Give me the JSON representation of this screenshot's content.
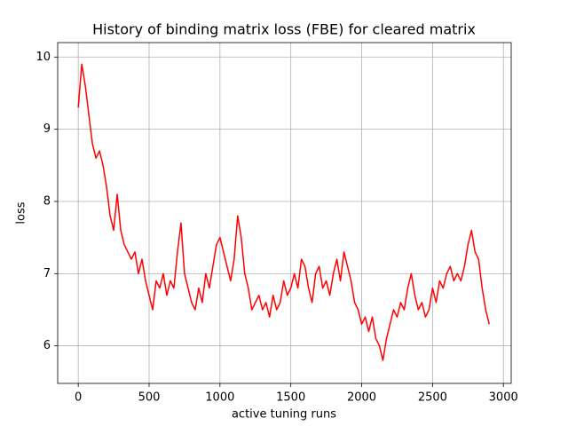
{
  "chart_data": {
    "type": "line",
    "title": "History of binding matrix loss (FBE) for cleared matrix",
    "xlabel": "active tuning runs",
    "ylabel": "loss",
    "x": [
      0,
      25,
      50,
      75,
      100,
      125,
      150,
      175,
      200,
      225,
      250,
      275,
      300,
      325,
      350,
      375,
      400,
      425,
      450,
      475,
      500,
      525,
      550,
      575,
      600,
      625,
      650,
      675,
      700,
      725,
      750,
      775,
      800,
      825,
      850,
      875,
      900,
      925,
      950,
      975,
      1000,
      1025,
      1050,
      1075,
      1100,
      1125,
      1150,
      1175,
      1200,
      1225,
      1250,
      1275,
      1300,
      1325,
      1350,
      1375,
      1400,
      1425,
      1450,
      1475,
      1500,
      1525,
      1550,
      1575,
      1600,
      1625,
      1650,
      1675,
      1700,
      1725,
      1750,
      1775,
      1800,
      1825,
      1850,
      1875,
      1900,
      1925,
      1950,
      1975,
      2000,
      2025,
      2050,
      2075,
      2100,
      2125,
      2150,
      2175,
      2200,
      2225,
      2250,
      2275,
      2300,
      2325,
      2350,
      2375,
      2400,
      2425,
      2450,
      2475,
      2500,
      2525,
      2550,
      2575,
      2600,
      2625,
      2650,
      2675,
      2700,
      2725,
      2750,
      2775,
      2800,
      2825,
      2850,
      2875,
      2900
    ],
    "series": [
      {
        "color": "#ff0000",
        "values": [
          9.3,
          9.9,
          9.6,
          9.2,
          8.8,
          8.6,
          8.7,
          8.5,
          8.2,
          7.8,
          7.6,
          8.1,
          7.6,
          7.4,
          7.3,
          7.2,
          7.3,
          7.0,
          7.2,
          6.9,
          6.7,
          6.5,
          6.9,
          6.8,
          7.0,
          6.7,
          6.9,
          6.8,
          7.3,
          7.7,
          7.0,
          6.8,
          6.6,
          6.5,
          6.8,
          6.6,
          7.0,
          6.8,
          7.1,
          7.4,
          7.5,
          7.3,
          7.1,
          6.9,
          7.2,
          7.8,
          7.5,
          7.0,
          6.8,
          6.5,
          6.6,
          6.7,
          6.5,
          6.6,
          6.4,
          6.7,
          6.5,
          6.6,
          6.9,
          6.7,
          6.8,
          7.0,
          6.8,
          7.2,
          7.1,
          6.8,
          6.6,
          7.0,
          7.1,
          6.8,
          6.9,
          6.7,
          7.0,
          7.2,
          6.9,
          7.3,
          7.1,
          6.9,
          6.6,
          6.5,
          6.3,
          6.4,
          6.2,
          6.4,
          6.1,
          6.0,
          5.8,
          6.1,
          6.3,
          6.5,
          6.4,
          6.6,
          6.5,
          6.8,
          7.0,
          6.7,
          6.5,
          6.6,
          6.4,
          6.5,
          6.8,
          6.6,
          6.9,
          6.8,
          7.0,
          7.1,
          6.9,
          7.0,
          6.9,
          7.1,
          7.4,
          7.6,
          7.3,
          7.2,
          6.8,
          6.5,
          6.3
        ]
      }
    ],
    "xlim": [
      -145,
      3055
    ],
    "ylim": [
      5.48,
      10.2
    ],
    "xticks": [
      0,
      500,
      1000,
      1500,
      2000,
      2500,
      3000
    ],
    "yticks": [
      6,
      7,
      8,
      9,
      10
    ],
    "grid": true
  }
}
